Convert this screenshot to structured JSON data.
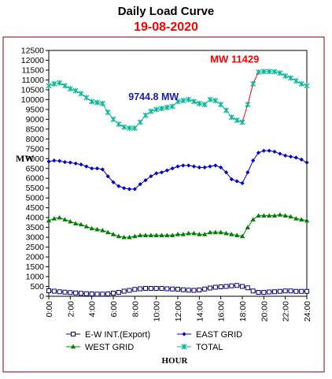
{
  "colors": {
    "frame": "#800000",
    "ew": "#000080",
    "east": "#0000CC",
    "west": "#008000",
    "total": "#00B894",
    "total_peak": "#FF0000",
    "annotation_peak": "#FF0000",
    "annotation_min": "#1A1AB0"
  },
  "chart_data": {
    "type": "line",
    "title": "Daily Load Curve",
    "subtitle": "19-08-2020",
    "xlabel": "HOUR",
    "ylabel": "MW",
    "ylim": [
      0,
      12500
    ],
    "yticks": [
      0,
      500,
      1000,
      1500,
      2000,
      2500,
      3000,
      3500,
      4000,
      4500,
      5000,
      5500,
      6000,
      6500,
      7000,
      7500,
      8000,
      8500,
      9000,
      9500,
      10000,
      10500,
      11000,
      11500,
      12000,
      12500
    ],
    "ytick_labels": [
      "0",
      "500",
      "1000",
      "1500",
      "2000",
      "2500",
      "3000",
      "3500",
      "4000",
      "4500",
      "5000",
      "5500",
      "6000",
      "6500",
      "7000",
      "7500",
      "8000",
      "8500",
      "9000",
      "9500",
      "10000",
      "10500",
      "11000",
      "11500",
      "12000",
      "12500"
    ],
    "xlim": [
      0,
      24
    ],
    "xticks": [
      0,
      2,
      4,
      6,
      8,
      10,
      12,
      14,
      16,
      18,
      20,
      22,
      24
    ],
    "xtick_labels": [
      "0:00",
      "2:00",
      "4:00",
      "6:00",
      "8:00",
      "10:00",
      "12:00",
      "14:00",
      "16:00",
      "18:00",
      "20:00",
      "22:00",
      "24:00"
    ],
    "grid": false,
    "legend_position": "bottom",
    "x": [
      0,
      0.5,
      1,
      1.5,
      2,
      2.5,
      3,
      3.5,
      4,
      4.5,
      5,
      5.5,
      6,
      6.5,
      7,
      7.5,
      8,
      8.5,
      9,
      9.5,
      10,
      10.5,
      11,
      11.5,
      12,
      12.5,
      13,
      13.5,
      14,
      14.5,
      15,
      15.5,
      16,
      16.5,
      17,
      17.5,
      18,
      18.5,
      19,
      19.5,
      20,
      20.5,
      21,
      21.5,
      22,
      22.5,
      23,
      23.5,
      24
    ],
    "series": [
      {
        "name": "E-W INT.(Export)",
        "marker": "square",
        "values": [
          280,
          260,
          230,
          210,
          190,
          170,
          150,
          130,
          120,
          110,
          110,
          120,
          160,
          200,
          260,
          300,
          350,
          380,
          400,
          400,
          400,
          400,
          380,
          370,
          360,
          330,
          310,
          300,
          320,
          370,
          420,
          460,
          480,
          500,
          530,
          550,
          500,
          430,
          270,
          200,
          200,
          220,
          230,
          250,
          270,
          270,
          250,
          250,
          250
        ]
      },
      {
        "name": "EAST GRID",
        "marker": "diamond",
        "values": [
          6850,
          6900,
          6880,
          6820,
          6800,
          6750,
          6700,
          6600,
          6500,
          6500,
          6450,
          6100,
          5800,
          5600,
          5500,
          5450,
          5450,
          5700,
          5900,
          6100,
          6250,
          6300,
          6400,
          6500,
          6600,
          6650,
          6650,
          6600,
          6550,
          6550,
          6600,
          6650,
          6550,
          6300,
          5950,
          5850,
          5750,
          6300,
          6900,
          7300,
          7400,
          7400,
          7350,
          7250,
          7150,
          7100,
          7050,
          6950,
          6800
        ]
      },
      {
        "name": "WEST GRID",
        "marker": "triangle",
        "values": [
          3850,
          3950,
          4000,
          3900,
          3800,
          3700,
          3650,
          3550,
          3450,
          3400,
          3350,
          3250,
          3150,
          3050,
          3000,
          3000,
          3050,
          3100,
          3100,
          3100,
          3100,
          3100,
          3100,
          3100,
          3150,
          3150,
          3200,
          3200,
          3150,
          3150,
          3250,
          3250,
          3250,
          3200,
          3150,
          3100,
          3050,
          3500,
          3900,
          4100,
          4100,
          4100,
          4100,
          4150,
          4100,
          4050,
          3950,
          3900,
          3850
        ]
      },
      {
        "name": "TOTAL",
        "marker": "star",
        "values": [
          10700,
          10800,
          10850,
          10700,
          10550,
          10450,
          10300,
          10100,
          9900,
          9850,
          9800,
          9350,
          9000,
          8750,
          8600,
          8550,
          8550,
          8850,
          9200,
          9400,
          9500,
          9550,
          9600,
          9650,
          9900,
          9950,
          10000,
          9900,
          9800,
          9750,
          10000,
          9950,
          9750,
          9450,
          9100,
          8950,
          8850,
          9750,
          10800,
          11400,
          11429,
          11429,
          11420,
          11350,
          11200,
          11100,
          10950,
          10800,
          10700
        ]
      }
    ],
    "annotations": [
      {
        "text": "MW  11429",
        "x": 20,
        "y": 11429
      },
      {
        "text": "9744.8 MW",
        "x": 9.75,
        "y": 9744.8
      }
    ]
  }
}
